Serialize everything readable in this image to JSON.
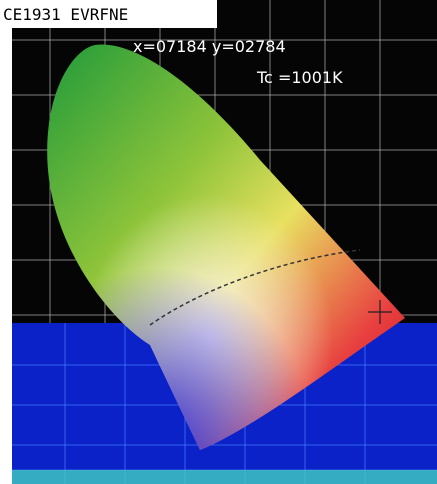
{
  "header": {
    "title": "CE1931 EVRFNE"
  },
  "readout": {
    "coordinates": "x=07184 y=02784",
    "temperature": "Tc =1001K"
  }
}
